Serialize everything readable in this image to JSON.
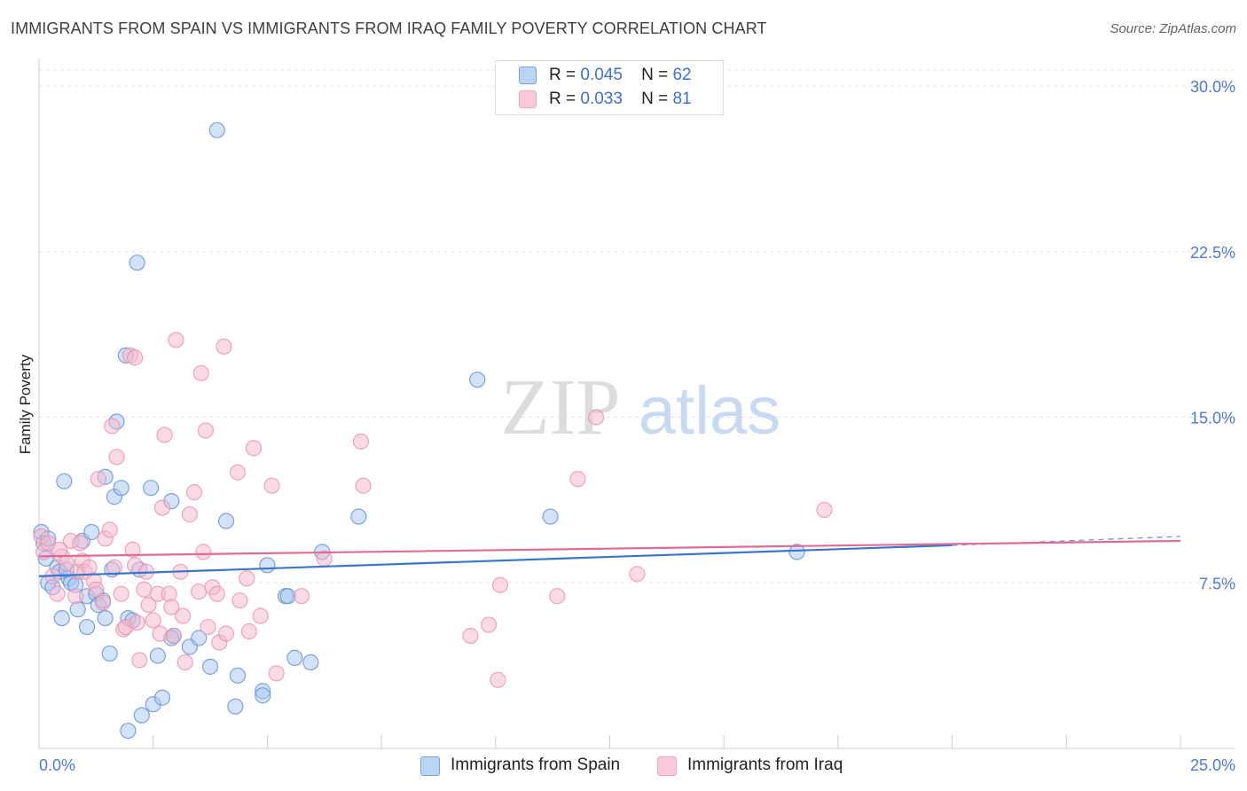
{
  "header": {
    "title": "IMMIGRANTS FROM SPAIN VS IMMIGRANTS FROM IRAQ FAMILY POVERTY CORRELATION CHART",
    "source": "Source: ZipAtlas.com"
  },
  "watermark": {
    "zip": "ZIP",
    "atlas": "atlas"
  },
  "legend": {
    "spain": {
      "r_label": "R =",
      "r_value": "0.045",
      "n_label": "N =",
      "n_value": "62"
    },
    "iraq": {
      "r_label": "R =",
      "r_value": "0.033",
      "n_label": "N =",
      "n_value": "81"
    }
  },
  "colors": {
    "spain_fill": "#a8c6f0",
    "spain_stroke": "#5b8ed6",
    "spain_line": "#3a76cc",
    "iraq_fill": "#f6b8cb",
    "iraq_stroke": "#e990ad",
    "iraq_line": "#e06b95",
    "tick_text": "#4a7bd0",
    "grid": "#e3e3e3"
  },
  "chart_data": {
    "type": "scatter",
    "title": "IMMIGRANTS FROM SPAIN VS IMMIGRANTS FROM IRAQ FAMILY POVERTY CORRELATION CHART",
    "xlabel": "",
    "ylabel": "Family Poverty",
    "xlim": [
      0,
      25
    ],
    "ylim": [
      0,
      31
    ],
    "x_tick_labels": [
      "0.0%",
      "25.0%"
    ],
    "y_ticks": [
      7.5,
      15.0,
      22.5,
      30.0
    ],
    "y_tick_labels": [
      "7.5%",
      "15.0%",
      "22.5%",
      "30.0%"
    ],
    "grid": true,
    "legend_position": "top-center",
    "series": [
      {
        "name": "Immigrants from Spain",
        "key": "spain",
        "trend": {
          "x": [
            0,
            20
          ],
          "y": [
            7.8,
            9.2
          ],
          "dashed_to": [
            25,
            9.6
          ]
        },
        "points": [
          [
            0.05,
            9.8
          ],
          [
            0.1,
            9.3
          ],
          [
            0.15,
            8.6
          ],
          [
            0.2,
            7.5
          ],
          [
            0.3,
            7.3
          ],
          [
            0.4,
            8.2
          ],
          [
            0.45,
            8.0
          ],
          [
            0.5,
            5.9
          ],
          [
            0.55,
            12.1
          ],
          [
            0.65,
            7.7
          ],
          [
            0.7,
            7.5
          ],
          [
            0.8,
            7.4
          ],
          [
            0.85,
            6.3
          ],
          [
            0.95,
            9.4
          ],
          [
            1.05,
            6.9
          ],
          [
            1.05,
            5.5
          ],
          [
            1.15,
            9.8
          ],
          [
            1.25,
            7.0
          ],
          [
            1.3,
            6.5
          ],
          [
            1.4,
            6.7
          ],
          [
            1.45,
            12.3
          ],
          [
            1.45,
            5.9
          ],
          [
            1.55,
            4.3
          ],
          [
            1.6,
            8.1
          ],
          [
            1.65,
            11.4
          ],
          [
            1.7,
            14.8
          ],
          [
            1.8,
            11.8
          ],
          [
            1.9,
            17.8
          ],
          [
            1.95,
            5.9
          ],
          [
            1.95,
            0.8
          ],
          [
            2.05,
            5.8
          ],
          [
            2.15,
            22.0
          ],
          [
            2.2,
            8.1
          ],
          [
            2.25,
            1.5
          ],
          [
            2.45,
            11.8
          ],
          [
            2.5,
            2.0
          ],
          [
            2.6,
            4.2
          ],
          [
            2.7,
            2.3
          ],
          [
            2.9,
            11.2
          ],
          [
            2.95,
            5.1
          ],
          [
            2.9,
            5.0
          ],
          [
            3.3,
            4.6
          ],
          [
            3.5,
            5.0
          ],
          [
            3.75,
            3.7
          ],
          [
            3.9,
            28.0
          ],
          [
            4.1,
            10.3
          ],
          [
            4.3,
            1.9
          ],
          [
            4.35,
            3.3
          ],
          [
            4.9,
            2.6
          ],
          [
            4.9,
            2.4
          ],
          [
            5.0,
            8.3
          ],
          [
            5.4,
            6.9
          ],
          [
            5.45,
            6.9
          ],
          [
            5.6,
            4.1
          ],
          [
            5.95,
            3.9
          ],
          [
            6.2,
            8.9
          ],
          [
            7.0,
            10.5
          ],
          [
            9.6,
            16.7
          ],
          [
            11.2,
            10.5
          ],
          [
            16.6,
            8.9
          ],
          [
            0.2,
            9.5
          ],
          [
            0.6,
            8.1
          ]
        ]
      },
      {
        "name": "Immigrants from Iraq",
        "key": "iraq",
        "trend": {
          "x": [
            0,
            25
          ],
          "y": [
            8.7,
            9.4
          ]
        },
        "points": [
          [
            0.05,
            9.6
          ],
          [
            0.1,
            8.9
          ],
          [
            0.2,
            9.3
          ],
          [
            0.3,
            7.8
          ],
          [
            0.4,
            7.0
          ],
          [
            0.5,
            8.7
          ],
          [
            0.6,
            8.4
          ],
          [
            0.7,
            9.4
          ],
          [
            0.8,
            6.9
          ],
          [
            0.85,
            8.0
          ],
          [
            0.9,
            9.3
          ],
          [
            0.95,
            8.5
          ],
          [
            1.0,
            8.0
          ],
          [
            1.1,
            8.2
          ],
          [
            1.2,
            7.6
          ],
          [
            1.25,
            7.2
          ],
          [
            1.3,
            12.2
          ],
          [
            1.4,
            6.6
          ],
          [
            1.45,
            9.5
          ],
          [
            1.55,
            9.9
          ],
          [
            1.6,
            14.6
          ],
          [
            1.65,
            8.2
          ],
          [
            1.7,
            13.2
          ],
          [
            1.8,
            7.0
          ],
          [
            1.85,
            5.4
          ],
          [
            1.9,
            5.5
          ],
          [
            2.0,
            17.8
          ],
          [
            2.05,
            9.0
          ],
          [
            2.1,
            8.3
          ],
          [
            2.15,
            5.7
          ],
          [
            2.2,
            4.0
          ],
          [
            2.3,
            7.2
          ],
          [
            2.35,
            8.0
          ],
          [
            2.4,
            6.5
          ],
          [
            2.5,
            5.8
          ],
          [
            2.6,
            7.0
          ],
          [
            2.65,
            5.2
          ],
          [
            2.7,
            10.9
          ],
          [
            2.75,
            14.2
          ],
          [
            2.85,
            7.0
          ],
          [
            2.9,
            6.4
          ],
          [
            2.95,
            5.1
          ],
          [
            3.0,
            18.5
          ],
          [
            3.1,
            8.0
          ],
          [
            3.15,
            6.0
          ],
          [
            3.2,
            3.9
          ],
          [
            3.3,
            10.6
          ],
          [
            3.4,
            11.6
          ],
          [
            3.5,
            7.1
          ],
          [
            3.55,
            17.0
          ],
          [
            3.6,
            8.9
          ],
          [
            3.65,
            14.4
          ],
          [
            3.7,
            5.5
          ],
          [
            3.8,
            7.3
          ],
          [
            3.9,
            7.0
          ],
          [
            3.95,
            4.8
          ],
          [
            4.05,
            18.2
          ],
          [
            4.1,
            5.2
          ],
          [
            4.35,
            12.5
          ],
          [
            4.4,
            6.7
          ],
          [
            4.55,
            7.7
          ],
          [
            4.6,
            5.3
          ],
          [
            4.7,
            13.6
          ],
          [
            4.85,
            6.0
          ],
          [
            5.1,
            11.9
          ],
          [
            5.2,
            3.4
          ],
          [
            5.75,
            6.9
          ],
          [
            6.25,
            8.6
          ],
          [
            7.05,
            13.9
          ],
          [
            7.1,
            11.9
          ],
          [
            9.45,
            5.1
          ],
          [
            9.85,
            5.6
          ],
          [
            10.05,
            3.1
          ],
          [
            10.1,
            7.4
          ],
          [
            11.35,
            6.9
          ],
          [
            11.8,
            12.2
          ],
          [
            12.2,
            15.0
          ],
          [
            13.1,
            7.9
          ],
          [
            17.2,
            10.8
          ],
          [
            2.1,
            17.7
          ],
          [
            0.45,
            9.0
          ]
        ]
      }
    ]
  },
  "bottom_legend": {
    "spain": "Immigrants from Spain",
    "iraq": "Immigrants from Iraq"
  }
}
